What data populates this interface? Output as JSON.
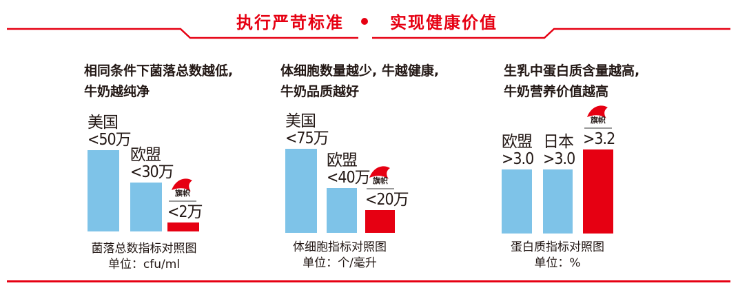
{
  "header": {
    "left": "执行严苛标准",
    "right": "实现健康价值"
  },
  "colors": {
    "accent": "#e60012",
    "bar_blue": "#7ec3e8",
    "bar_red": "#e60012",
    "text": "#231815"
  },
  "brand": {
    "name": "旗帜"
  },
  "panels": [
    {
      "headline": [
        "相同条件下菌落总数越低,",
        "牛奶越纯净"
      ],
      "caption": "菌落总数指标对照图",
      "unit": "单位：cfu/ml"
    },
    {
      "headline": [
        "体细胞数量越少, 牛越健康,",
        "牛奶品质越好"
      ],
      "caption": "体细胞指标对照图",
      "unit": "单位：个/毫升"
    },
    {
      "headline": [
        "生乳中蛋白质含量越高,",
        "牛奶营养价值越高"
      ],
      "caption": "蛋白质指标对照图",
      "unit": "单位：%"
    }
  ],
  "chart_data": [
    {
      "type": "bar",
      "title": "菌落总数指标对照图",
      "ylabel": "单位：cfu/ml",
      "categories": [
        "美国",
        "欧盟",
        "旗帜"
      ],
      "value_labels": [
        "<50万",
        "<30万",
        "<2万"
      ],
      "values": [
        500000,
        300000,
        20000
      ],
      "ylim": [
        0,
        500000
      ],
      "colors": [
        "#7ec3e8",
        "#7ec3e8",
        "#e60012"
      ]
    },
    {
      "type": "bar",
      "title": "体细胞指标对照图",
      "ylabel": "单位：个/毫升",
      "categories": [
        "美国",
        "欧盟",
        "旗帜"
      ],
      "value_labels": [
        "<75万",
        "<40万",
        "<20万"
      ],
      "values": [
        750000,
        400000,
        200000
      ],
      "ylim": [
        0,
        750000
      ],
      "colors": [
        "#7ec3e8",
        "#7ec3e8",
        "#e60012"
      ]
    },
    {
      "type": "bar",
      "title": "蛋白质指标对照图",
      "ylabel": "单位：%",
      "categories": [
        "欧盟",
        "日本",
        "旗帜"
      ],
      "value_labels": [
        ">3.0",
        ">3.0",
        ">3.2"
      ],
      "values": [
        3.0,
        3.0,
        3.2
      ],
      "ylim": [
        0,
        3.2
      ],
      "colors": [
        "#7ec3e8",
        "#7ec3e8",
        "#e60012"
      ]
    }
  ]
}
